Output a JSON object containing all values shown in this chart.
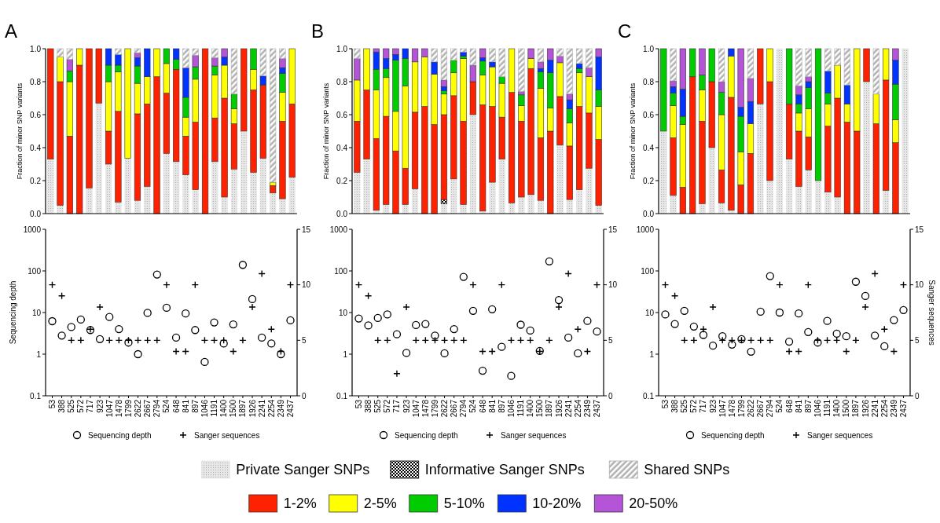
{
  "chart_data": [
    {
      "type": "bar",
      "title": "A",
      "ylabel": "Fraction of minor SNP variants",
      "stacked": true,
      "legend": "bottom",
      "ylim": [
        0,
        1
      ],
      "yticks": [
        {
          "value": 0,
          "label": "0.0"
        },
        {
          "value": 0.2,
          "label": "0.2"
        },
        {
          "value": 0.4,
          "label": "0.4"
        },
        {
          "value": 0.6,
          "label": "0.6"
        },
        {
          "value": 0.8,
          "label": "0.8"
        },
        {
          "value": 1,
          "label": "1.0"
        }
      ],
      "categories": [
        null,
        null,
        null,
        null,
        null,
        null,
        null,
        null,
        null,
        null,
        null,
        null,
        null,
        null,
        null,
        null,
        null,
        null,
        null,
        null,
        null,
        null,
        null,
        null,
        null,
        null
      ],
      "series": [
        {
          "name": "Private Sanger SNPs",
          "color": "#e6e6e6",
          "values": [
            0.33,
            0.05,
            null,
            null,
            0.155,
            0.67,
            0.3,
            0.07,
            0.335,
            0.08,
            0.165,
            null,
            0.365,
            0.315,
            0.235,
            0.145,
            null,
            0.315,
            0.1,
            0.27,
            0.5,
            0.25,
            0.335,
            0.125,
            0.09,
            0.22
          ]
        },
        {
          "name": "Informative Sanger SNPs",
          "color": "#000000",
          "values": [
            null,
            null,
            null,
            null,
            null,
            null,
            null,
            null,
            null,
            null,
            null,
            null,
            null,
            null,
            null,
            null,
            null,
            null,
            null,
            null,
            null,
            null,
            null,
            null,
            null,
            null
          ]
        },
        {
          "name": "1-2%",
          "color": "#ff2200",
          "values": [
            0.67,
            0.75,
            0.47,
            0.9,
            0.845,
            0.33,
            0.2,
            0.55,
            null,
            0.525,
            0.5,
            0.83,
            0.365,
            0.56,
            0.235,
            0.41,
            1,
            0.265,
            0.6,
            0.275,
            0.5,
            0.5,
            0.445,
            0.045,
            0.47,
            0.445
          ]
        },
        {
          "name": "2-5%",
          "color": "#ffff00",
          "values": [
            null,
            0.15,
            0.33,
            0.1,
            null,
            null,
            0.3,
            0.24,
            0.665,
            0.185,
            0.165,
            0.17,
            0.18,
            null,
            0.115,
            0.26,
            null,
            0.26,
            0.2,
            0.09,
            null,
            0.125,
            null,
            0.02,
            0.175,
            0.335
          ]
        },
        {
          "name": "5-10%",
          "color": "#00cc00",
          "values": [
            null,
            null,
            0.065,
            null,
            null,
            null,
            0.1,
            0.04,
            null,
            0.105,
            null,
            null,
            0.09,
            0.06,
            0.12,
            0.075,
            null,
            0.055,
            null,
            0.09,
            null,
            0.125,
            null,
            null,
            0.115,
            null
          ]
        },
        {
          "name": "10-20%",
          "color": "#0033ff",
          "values": [
            null,
            null,
            null,
            null,
            null,
            null,
            0.1,
            0.065,
            null,
            0.05,
            0.17,
            null,
            null,
            0.065,
            0.18,
            null,
            null,
            null,
            0.05,
            null,
            null,
            null,
            0.055,
            null,
            0.035,
            null
          ]
        },
        {
          "name": "20-50%",
          "color": "#b455d8",
          "values": [
            null,
            null,
            0.07,
            null,
            null,
            null,
            null,
            null,
            null,
            0.03,
            null,
            null,
            null,
            null,
            null,
            0.07,
            null,
            0.05,
            0.05,
            null,
            null,
            null,
            null,
            null,
            0.055,
            null
          ]
        },
        {
          "name": "Shared SNPs",
          "color": "#b0b0b0",
          "values": [
            null,
            0.05,
            0.065,
            null,
            null,
            null,
            null,
            0.035,
            null,
            0.025,
            null,
            null,
            null,
            null,
            0.115,
            0.04,
            null,
            0.055,
            null,
            0.275,
            null,
            null,
            0.165,
            0.81,
            0.06,
            null
          ]
        }
      ]
    },
    {
      "type": "bar",
      "title": "B",
      "ylabel": "Fraction of minor SNP variants",
      "stacked": true,
      "ylim": [
        0,
        1
      ],
      "yticks": [
        {
          "value": 0,
          "label": "0.0"
        },
        {
          "value": 0.2,
          "label": "0.2"
        },
        {
          "value": 0.4,
          "label": "0.4"
        },
        {
          "value": 0.6,
          "label": "0.6"
        },
        {
          "value": 0.8,
          "label": "0.8"
        },
        {
          "value": 1,
          "label": "1.0"
        }
      ],
      "categories": [
        null,
        null,
        null,
        null,
        null,
        null,
        null,
        null,
        null,
        null,
        null,
        null,
        null,
        null,
        null,
        null,
        null,
        null,
        null,
        null,
        null,
        null,
        null,
        null,
        null,
        null
      ],
      "series": [
        {
          "color": "#e6e6e6",
          "values": [
            0.25,
            0.33,
            0.02,
            0.055,
            null,
            0.055,
            0.15,
            null,
            null,
            0.06,
            0.21,
            0.055,
            0.6,
            0.015,
            0.19,
            0.33,
            0.065,
            0.1,
            0.115,
            0.08,
            null,
            0.415,
            0.085,
            0.145,
            0.275,
            0.05
          ]
        },
        {
          "color": "#000000",
          "values": [
            null,
            null,
            null,
            null,
            null,
            null,
            null,
            null,
            null,
            0.025,
            null,
            null,
            null,
            null,
            null,
            null,
            null,
            null,
            null,
            null,
            null,
            null,
            null,
            null,
            null,
            null
          ]
        },
        {
          "color": "#ff2200",
          "values": [
            0.31,
            0.42,
            0.435,
            0.535,
            0.38,
            0.22,
            0.465,
            0.65,
            0.54,
            0.515,
            0.505,
            0.505,
            0.2,
            0.645,
            0.46,
            0.255,
            0.67,
            0.46,
            0.765,
            0.38,
            0.5,
            0.295,
            0.325,
            0.505,
            0.335,
            0.4
          ]
        },
        {
          "color": "#ffff00",
          "values": [
            0.25,
            0.25,
            0.295,
            0.235,
            0.24,
            0.5,
            0.305,
            0.3,
            0.305,
            0.125,
            0.14,
            0.38,
            null,
            0.18,
            0.24,
            0.205,
            0.265,
            0.095,
            0.06,
            0.3,
            0.14,
            0.205,
            0.14,
            0.205,
            0.22,
            0.2
          ]
        },
        {
          "color": "#00cc00",
          "values": [
            null,
            null,
            0.125,
            0.055,
            0.31,
            0.165,
            null,
            null,
            null,
            0.02,
            0.075,
            0.015,
            null,
            0.085,
            null,
            0.04,
            null,
            0.065,
            null,
            0.1,
            0.215,
            null,
            0.085,
            0.025,
            null,
            0.1
          ]
        },
        {
          "color": "#0033ff",
          "values": [
            null,
            null,
            0.105,
            0.06,
            0.035,
            0.06,
            null,
            null,
            0.075,
            0.025,
            null,
            0.025,
            null,
            0.02,
            0.03,
            null,
            null,
            null,
            null,
            0.02,
            0.075,
            null,
            0.055,
            0.03,
            null,
            0.2
          ]
        },
        {
          "color": "#b455d8",
          "values": [
            0.13,
            null,
            0.02,
            0.06,
            0.035,
            null,
            0.08,
            0.05,
            null,
            0.04,
            null,
            null,
            0.1,
            0.055,
            null,
            null,
            null,
            0.02,
            0.06,
            0.04,
            0.07,
            0.04,
            0.035,
            null,
            0.055,
            0.05
          ]
        },
        {
          "color": "#b0b0b0",
          "values": [
            0.06,
            null,
            null,
            null,
            null,
            null,
            null,
            null,
            0.08,
            0.19,
            0.07,
            0.02,
            0.1,
            null,
            0.08,
            0.17,
            null,
            0.26,
            null,
            0.08,
            null,
            0.045,
            0.275,
            0.09,
            0.115,
            null
          ]
        }
      ]
    },
    {
      "type": "bar",
      "title": "C",
      "ylabel": "Fraction of minor SNP variants",
      "stacked": true,
      "ylim": [
        0,
        1
      ],
      "yticks": [
        {
          "value": 0,
          "label": "0.0"
        },
        {
          "value": 0.2,
          "label": "0.2"
        },
        {
          "value": 0.4,
          "label": "0.4"
        },
        {
          "value": 0.6,
          "label": "0.6"
        },
        {
          "value": 0.8,
          "label": "0.8"
        },
        {
          "value": 1,
          "label": "1.0"
        }
      ],
      "categories": [
        null,
        null,
        null,
        null,
        null,
        null,
        null,
        null,
        null,
        null,
        null,
        null,
        null,
        null,
        null,
        null,
        null,
        null,
        null,
        null,
        null,
        null,
        null,
        null,
        null,
        null
      ],
      "series": [
        {
          "color": "#e6e6e6",
          "values": [
            0.5,
            0.11,
            null,
            null,
            0.06,
            0.4,
            0.065,
            0.02,
            null,
            null,
            0.665,
            0.2,
            1,
            0.33,
            0.165,
            0.265,
            0.2,
            0.13,
            0.1,
            null,
            null,
            0.8,
            null,
            0.14,
            null,
            1
          ]
        },
        {
          "color": "#ff2200",
          "values": [
            null,
            0.35,
            0.16,
            0.83,
            0.5,
            0.4,
            0.2,
            0.685,
            0.175,
            0.365,
            0.335,
            0.6,
            null,
            0.335,
            0.335,
            0.2,
            null,
            0.4,
            0.6,
            0.555,
            0.5,
            0.2,
            0.545,
            0.67,
            0.43,
            null
          ]
        },
        {
          "color": "#ffff00",
          "values": [
            null,
            0.195,
            0.38,
            null,
            0.19,
            null,
            0.335,
            0.25,
            0.2,
            0.18,
            null,
            0.2,
            null,
            null,
            0.11,
            0.17,
            null,
            0.135,
            0.2,
            0.11,
            0.5,
            null,
            0.18,
            0.19,
            0.14,
            null
          ]
        },
        {
          "color": "#00cc00",
          "values": [
            0.5,
            0.075,
            0.05,
            0.17,
            0.09,
            0.2,
            0.135,
            null,
            0.215,
            null,
            null,
            null,
            null,
            0.335,
            0.055,
            0.13,
            0.8,
            0.065,
            null,
            null,
            null,
            null,
            null,
            null,
            0.215,
            null
          ]
        },
        {
          "color": "#0033ff",
          "values": [
            null,
            0.04,
            0.165,
            null,
            null,
            null,
            null,
            0.045,
            0.055,
            0.135,
            null,
            null,
            null,
            null,
            0.055,
            0.035,
            null,
            0.135,
            null,
            0.115,
            null,
            null,
            null,
            null,
            0.145,
            null
          ]
        },
        {
          "color": "#b455d8",
          "values": [
            null,
            0.035,
            0.245,
            null,
            0.16,
            null,
            0.065,
            null,
            0.355,
            0.14,
            null,
            null,
            null,
            null,
            0.055,
            0.03,
            null,
            null,
            null,
            null,
            null,
            null,
            null,
            null,
            0.07,
            null
          ]
        },
        {
          "color": "#b0b0b0",
          "values": [
            null,
            0.195,
            null,
            null,
            null,
            null,
            0.2,
            null,
            null,
            0.18,
            null,
            null,
            null,
            null,
            0.225,
            0.17,
            null,
            0.135,
            0.1,
            0.22,
            null,
            null,
            0.275,
            null,
            null,
            null
          ]
        }
      ]
    },
    {
      "type": "scatter",
      "ylabel": "Sequencing depth",
      "log": "y",
      "legend": "bottom",
      "ylim": [
        0.1,
        1000
      ],
      "yticks": [
        0.1,
        1,
        10,
        100,
        1000
      ],
      "y2lim": [
        0,
        15
      ],
      "y2ticks": [
        0,
        5,
        10,
        15
      ],
      "categories": [
        "53",
        "388",
        "525",
        "572",
        "717",
        "923",
        "1047",
        "1478",
        "1799",
        "2622",
        "2667",
        "2794",
        "524",
        "648",
        "841",
        "897",
        "1046",
        "1191",
        "1400",
        "1500",
        "1897",
        "1926",
        "2241",
        "2254",
        "2349",
        "2437"
      ],
      "series": [
        {
          "name": "Sequencing depth",
          "color": "#000000",
          "marker": "circle",
          "values": [
            6.2,
            2.8,
            4.5,
            6.8,
            3.8,
            2.3,
            7.8,
            4.0,
            1.9,
            1.0,
            9.8,
            82,
            13,
            2.5,
            9.5,
            3.8,
            0.65,
            5.8,
            1.8,
            5.2,
            140,
            21,
            2.5,
            1.8,
            1.0,
            6.5
          ]
        },
        {
          "name": "Sanger sequences",
          "color": "#000000",
          "marker": "cross",
          "axis": "y2",
          "values": [
            10,
            9,
            5,
            5,
            6,
            8,
            5,
            5,
            5,
            5,
            5,
            5,
            10,
            4,
            4,
            10,
            5,
            5,
            5,
            4,
            5,
            8,
            11,
            6,
            4,
            10
          ]
        }
      ]
    },
    {
      "type": "scatter",
      "log": "y",
      "legend": "bottom",
      "ylim": [
        0.1,
        1000
      ],
      "yticks": [
        0.1,
        1,
        10,
        100,
        1000
      ],
      "y2lim": [
        0,
        15
      ],
      "y2ticks": [
        0,
        5,
        10,
        15
      ],
      "categories": [
        "53",
        "388",
        "525",
        "572",
        "717",
        "923",
        "1047",
        "1478",
        "1799",
        "2622",
        "2667",
        "2794",
        "524",
        "648",
        "841",
        "897",
        "1046",
        "1191",
        "1400",
        "1500",
        "1897",
        "1926",
        "2241",
        "2254",
        "2349",
        "2437"
      ],
      "series": [
        {
          "name": "Sequencing depth",
          "color": "#000000",
          "marker": "circle",
          "values": [
            7.2,
            4.9,
            7.4,
            9,
            3,
            1.07,
            5,
            5.3,
            2.8,
            1.05,
            4,
            72,
            11,
            0.4,
            12,
            1.5,
            0.3,
            5.1,
            3.7,
            1.2,
            170,
            20,
            2.5,
            1.05,
            6.3,
            3.5
          ]
        },
        {
          "name": "Sanger sequences",
          "color": "#000000",
          "marker": "cross",
          "axis": "y2",
          "values": [
            10,
            9,
            5,
            5,
            2,
            8,
            5,
            5,
            5,
            5,
            5,
            5,
            10,
            4,
            4,
            10,
            5,
            5,
            5,
            4,
            5,
            8,
            11,
            6,
            4,
            10
          ]
        }
      ]
    },
    {
      "type": "scatter",
      "y2label": "Sanger sequences",
      "log": "y",
      "legend": "bottom",
      "ylim": [
        0.1,
        1000
      ],
      "yticks": [
        0.1,
        1,
        10,
        100,
        1000
      ],
      "y2lim": [
        0,
        15
      ],
      "y2ticks": [
        0,
        5,
        10,
        15
      ],
      "categories": [
        "53",
        "388",
        "525",
        "572",
        "717",
        "923",
        "1047",
        "1478",
        "1799",
        "2622",
        "2667",
        "2794",
        "524",
        "648",
        "841",
        "897",
        "1046",
        "1191",
        "1400",
        "1500",
        "1897",
        "1926",
        "2241",
        "2254",
        "2349",
        "2437"
      ],
      "series": [
        {
          "name": "Sequencing depth",
          "color": "#000000",
          "marker": "circle",
          "values": [
            9,
            5.3,
            11,
            4.6,
            2.9,
            1.6,
            2.7,
            1.7,
            2.3,
            1.15,
            10.5,
            75,
            10,
            2.0,
            9.5,
            3.4,
            1.9,
            6.3,
            3.1,
            2.7,
            55,
            25,
            2.8,
            1.55,
            6.6,
            11.5
          ]
        },
        {
          "name": "Sanger sequences",
          "color": "#000000",
          "marker": "cross",
          "axis": "y2",
          "values": [
            10,
            9,
            5,
            5,
            6,
            8,
            5,
            5,
            5,
            5,
            5,
            5,
            10,
            4,
            4,
            10,
            5,
            5,
            5,
            4,
            5,
            8,
            11,
            6,
            4,
            10
          ]
        }
      ]
    }
  ]
}
